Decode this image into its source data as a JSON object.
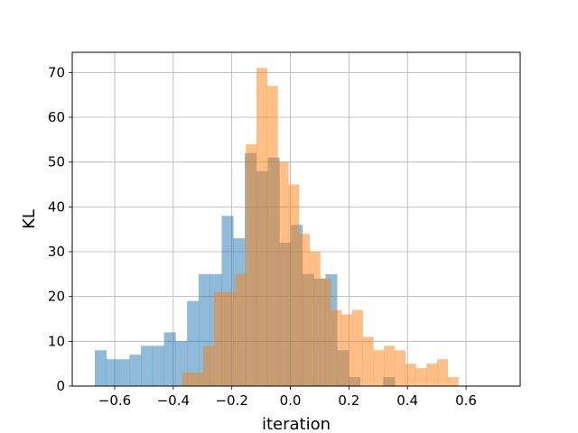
{
  "chart_data": {
    "type": "histogram",
    "xlabel": "iteration",
    "ylabel": "KL",
    "xlim": [
      -0.745,
      0.785
    ],
    "ylim": [
      0,
      74.5
    ],
    "grid": true,
    "xticks": [
      -0.6,
      -0.4,
      -0.2,
      0.0,
      0.2,
      0.4,
      0.6
    ],
    "xtick_labels": [
      "−0.6",
      "−0.4",
      "−0.2",
      "0.0",
      "0.2",
      "0.4",
      "0.6"
    ],
    "yticks": [
      0,
      10,
      20,
      30,
      40,
      50,
      60,
      70
    ],
    "ytick_labels": [
      "0",
      "10",
      "20",
      "30",
      "40",
      "50",
      "60",
      "70"
    ],
    "series": [
      {
        "color": "#1f77b4",
        "alpha": 0.5,
        "bin_start": -0.668,
        "bin_width": 0.0394,
        "counts": [
          8,
          6,
          6,
          7,
          9,
          9,
          12,
          10,
          19,
          25,
          25,
          38,
          33,
          52,
          48,
          51,
          32,
          36,
          25,
          24,
          25,
          8,
          2,
          0,
          0,
          2
        ]
      },
      {
        "color": "#ff7f0e",
        "alpha": 0.5,
        "bin_start": -0.37,
        "bin_width": 0.0363,
        "counts": [
          3,
          3,
          9,
          21,
          21,
          25,
          54,
          71,
          67,
          50,
          45,
          34,
          30,
          24,
          17,
          16,
          17,
          11,
          8,
          9,
          8,
          5,
          4,
          5,
          6,
          2
        ]
      }
    ]
  }
}
